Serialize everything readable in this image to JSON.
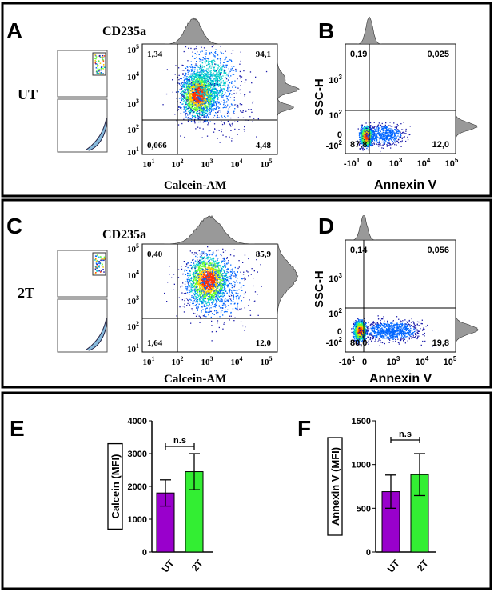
{
  "panels": {
    "A": {
      "letter": "A",
      "sample": "UT",
      "title": "CD235a",
      "xlabel": "Calcein-AM",
      "quadrants": {
        "ul": "1,34",
        "ur": "94,1",
        "ll": "0,066",
        "lr": "4,48"
      },
      "xticks": [
        "1",
        "2",
        "3",
        "4",
        "5"
      ],
      "yticks": [
        "5",
        "4",
        "3",
        "2",
        "1"
      ]
    },
    "B": {
      "letter": "B",
      "ylabel": "SSC-H",
      "xlabel": "Annexin V",
      "quadrants": {
        "ul": "0,19",
        "ur": "0,025",
        "ll": "87,8",
        "lr": "12,0"
      }
    },
    "C": {
      "letter": "C",
      "sample": "2T",
      "title": "CD235a",
      "xlabel": "Calcein-AM",
      "quadrants": {
        "ul": "0,40",
        "ur": "85,9",
        "ll": "1,64",
        "lr": "12,0"
      },
      "xticks": [
        "1",
        "2",
        "3",
        "4",
        "5"
      ],
      "yticks": [
        "5",
        "4",
        "3",
        "2",
        "1"
      ]
    },
    "D": {
      "letter": "D",
      "ylabel": "SSC-H",
      "xlabel": "Annexin V",
      "quadrants": {
        "ul": "0,14",
        "ur": "0,056",
        "ll": "80,0",
        "lr": "19,8"
      }
    },
    "E": {
      "letter": "E"
    },
    "F": {
      "letter": "F"
    }
  },
  "colors": {
    "UT": "#9900cc",
    "2T": "#33ee33",
    "frame": "#000000"
  },
  "chart_data": [
    {
      "type": "bar",
      "panel": "E",
      "ylabel": "Calcein (MFI)",
      "categories": [
        "UT",
        "2T"
      ],
      "values": [
        1800,
        2450
      ],
      "error_low": [
        1400,
        1900
      ],
      "error_high": [
        2200,
        3000
      ],
      "ylim": [
        0,
        4000
      ],
      "yticks": [
        "0",
        "1000",
        "2000",
        "3000",
        "4000"
      ],
      "annotation": "n.s"
    },
    {
      "type": "bar",
      "panel": "F",
      "ylabel": "Annexin V (MFI)",
      "categories": [
        "UT",
        "2T"
      ],
      "values": [
        690,
        885
      ],
      "error_low": [
        500,
        645
      ],
      "error_high": [
        880,
        1125
      ],
      "ylim": [
        0,
        1500
      ],
      "yticks": [
        "0",
        "500",
        "1000",
        "1500"
      ],
      "annotation": "n.s"
    }
  ]
}
